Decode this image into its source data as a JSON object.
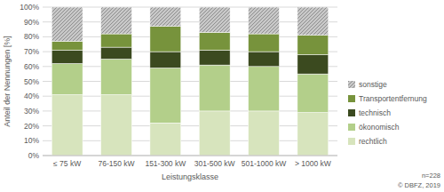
{
  "chart_data": {
    "type": "bar",
    "stacked": true,
    "grid": true,
    "legend": "right",
    "x_label": "Leistungsklasse",
    "y_label": "Anteil der Nennungen [%]",
    "annotations": [
      "n=228",
      "© DBFZ, 2019"
    ],
    "categories": [
      "≤ 75 kW",
      "76-150 kW",
      "151-300 kW",
      "301-500 kW",
      "501-1000 kW",
      "> 1000 kW"
    ],
    "ylim": [
      0,
      100
    ],
    "yticks": [
      {
        "value": 0,
        "label": "0%"
      },
      {
        "value": 10,
        "label": "10%"
      },
      {
        "value": 20,
        "label": "20%"
      },
      {
        "value": 30,
        "label": "30%"
      },
      {
        "value": 40,
        "label": "40%"
      },
      {
        "value": 50,
        "label": "50%"
      },
      {
        "value": 60,
        "label": "60%"
      },
      {
        "value": 70,
        "label": "70%"
      },
      {
        "value": 80,
        "label": "80%"
      },
      {
        "value": 90,
        "label": "90%"
      },
      {
        "value": 100,
        "label": "100%"
      }
    ],
    "series": [
      {
        "name": "rechtlich",
        "color": "#d7e4bd",
        "values": [
          41,
          41,
          22,
          30,
          30,
          29
        ]
      },
      {
        "name": "ökonomisch",
        "color": "#b3cf8a",
        "values": [
          21,
          24,
          37,
          31,
          30,
          26
        ]
      },
      {
        "name": "technisch",
        "color": "#3b4a1f",
        "values": [
          9,
          8,
          11,
          10,
          10,
          13
        ]
      },
      {
        "name": "Transportentfernung",
        "color": "#77933c",
        "values": [
          6,
          9,
          17,
          12,
          12,
          13
        ]
      },
      {
        "name": "sonstige",
        "color": "#c8c8c8",
        "values": [
          23,
          18,
          13,
          17,
          18,
          19
        ]
      }
    ]
  }
}
